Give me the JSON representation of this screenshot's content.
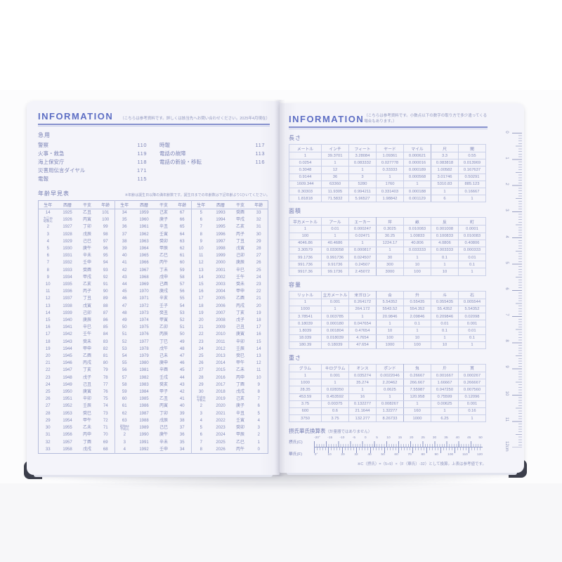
{
  "left_page": {
    "header": {
      "title": "INFORMATION",
      "note": "（こちらは参考資料です。詳しくは該当先へお問い合わせください。2025年4月現在）"
    },
    "emergency": {
      "title": "急用",
      "items_left": [
        {
          "label": "警察",
          "value": "110"
        },
        {
          "label": "火事・救急",
          "value": "119"
        },
        {
          "label": "海上保安庁",
          "value": "118"
        },
        {
          "label": "災害用伝言ダイヤル",
          "value": "171"
        },
        {
          "label": "電報",
          "value": "115"
        }
      ],
      "items_right": [
        {
          "label": "時報",
          "value": "117"
        },
        {
          "label": "電話の故障",
          "value": "113"
        },
        {
          "label": "電話の新設・移転",
          "value": "116"
        }
      ]
    },
    "age_chart": {
      "title": "年齢早見表",
      "note": "※年齢は誕生日以降の満年齢数です。誕生日までの年齢数は下記年齢より1ひいてください。",
      "table": {
        "headers": [
          "生年",
          "西暦",
          "干支",
          "年齢",
          "生年",
          "西暦",
          "干支",
          "年齢",
          "生年",
          "西暦",
          "干支",
          "年齢"
        ],
        "rows": [
          [
            "14",
            "1925",
            "乙丑",
            "101",
            "34",
            "1959",
            "己亥",
            "67",
            "5",
            "1993",
            "癸酉",
            "33"
          ],
          [
            "大正15\n昭和元",
            "1926",
            "丙寅",
            "100",
            "35",
            "1960",
            "庚子",
            "66",
            "6",
            "1994",
            "甲戌",
            "32"
          ],
          [
            "2",
            "1927",
            "丁卯",
            "99",
            "36",
            "1961",
            "辛丑",
            "65",
            "7",
            "1995",
            "乙亥",
            "31"
          ],
          [
            "3",
            "1928",
            "戊辰",
            "98",
            "37",
            "1962",
            "壬寅",
            "64",
            "8",
            "1996",
            "丙子",
            "30"
          ],
          [
            "4",
            "1929",
            "己巳",
            "97",
            "38",
            "1963",
            "癸卯",
            "63",
            "9",
            "1997",
            "丁丑",
            "29"
          ],
          [
            "5",
            "1930",
            "庚午",
            "96",
            "39",
            "1964",
            "甲辰",
            "62",
            "10",
            "1998",
            "戊寅",
            "28"
          ],
          [
            "6",
            "1931",
            "辛未",
            "95",
            "40",
            "1965",
            "乙巳",
            "61",
            "11",
            "1999",
            "己卯",
            "27"
          ],
          [
            "7",
            "1932",
            "壬申",
            "94",
            "41",
            "1966",
            "丙午",
            "60",
            "12",
            "2000",
            "庚辰",
            "26"
          ],
          [
            "8",
            "1933",
            "癸酉",
            "93",
            "42",
            "1967",
            "丁未",
            "59",
            "13",
            "2001",
            "辛巳",
            "25"
          ],
          [
            "9",
            "1934",
            "甲戌",
            "92",
            "43",
            "1968",
            "戊申",
            "58",
            "14",
            "2002",
            "壬午",
            "24"
          ],
          [
            "10",
            "1935",
            "乙亥",
            "91",
            "44",
            "1969",
            "己酉",
            "57",
            "15",
            "2003",
            "癸未",
            "23"
          ],
          [
            "11",
            "1936",
            "丙子",
            "90",
            "45",
            "1970",
            "庚戌",
            "56",
            "16",
            "2004",
            "甲申",
            "22"
          ],
          [
            "12",
            "1937",
            "丁丑",
            "89",
            "46",
            "1971",
            "辛亥",
            "55",
            "17",
            "2005",
            "乙酉",
            "21"
          ],
          [
            "13",
            "1938",
            "戊寅",
            "88",
            "47",
            "1972",
            "壬子",
            "54",
            "18",
            "2006",
            "丙戌",
            "20"
          ],
          [
            "14",
            "1939",
            "己卯",
            "87",
            "48",
            "1973",
            "癸丑",
            "53",
            "19",
            "2007",
            "丁亥",
            "19"
          ],
          [
            "15",
            "1940",
            "庚辰",
            "86",
            "49",
            "1974",
            "甲寅",
            "52",
            "20",
            "2008",
            "戊子",
            "18"
          ],
          [
            "16",
            "1941",
            "辛巳",
            "85",
            "50",
            "1975",
            "乙卯",
            "51",
            "21",
            "2009",
            "己丑",
            "17"
          ],
          [
            "17",
            "1942",
            "壬午",
            "84",
            "51",
            "1976",
            "丙辰",
            "50",
            "22",
            "2010",
            "庚寅",
            "16"
          ],
          [
            "18",
            "1943",
            "癸未",
            "83",
            "52",
            "1977",
            "丁巳",
            "49",
            "23",
            "2011",
            "辛卯",
            "15"
          ],
          [
            "19",
            "1944",
            "甲申",
            "82",
            "53",
            "1978",
            "戊午",
            "48",
            "24",
            "2012",
            "壬辰",
            "14"
          ],
          [
            "20",
            "1945",
            "乙酉",
            "81",
            "54",
            "1979",
            "己未",
            "47",
            "25",
            "2013",
            "癸巳",
            "13"
          ],
          [
            "21",
            "1946",
            "丙戌",
            "80",
            "55",
            "1980",
            "庚申",
            "46",
            "26",
            "2014",
            "甲午",
            "12"
          ],
          [
            "22",
            "1947",
            "丁亥",
            "79",
            "56",
            "1981",
            "辛酉",
            "45",
            "27",
            "2015",
            "乙未",
            "11"
          ],
          [
            "23",
            "1948",
            "戊子",
            "78",
            "57",
            "1982",
            "壬戌",
            "44",
            "28",
            "2016",
            "丙申",
            "10"
          ],
          [
            "24",
            "1949",
            "己丑",
            "77",
            "58",
            "1983",
            "癸亥",
            "43",
            "29",
            "2017",
            "丁酉",
            "9"
          ],
          [
            "25",
            "1950",
            "庚寅",
            "76",
            "59",
            "1984",
            "甲子",
            "42",
            "30",
            "2018",
            "戊戌",
            "8"
          ],
          [
            "26",
            "1951",
            "辛卯",
            "75",
            "60",
            "1985",
            "乙丑",
            "41",
            "平成31\n令和元",
            "2019",
            "己亥",
            "7"
          ],
          [
            "27",
            "1952",
            "壬辰",
            "74",
            "61",
            "1986",
            "丙寅",
            "40",
            "2",
            "2020",
            "庚子",
            "6"
          ],
          [
            "28",
            "1953",
            "癸巳",
            "73",
            "62",
            "1987",
            "丁卯",
            "39",
            "3",
            "2021",
            "辛丑",
            "5"
          ],
          [
            "29",
            "1954",
            "甲午",
            "72",
            "63",
            "1988",
            "戊辰",
            "38",
            "4",
            "2022",
            "壬寅",
            "4"
          ],
          [
            "30",
            "1955",
            "乙未",
            "71",
            "昭和64\n平成元",
            "1989",
            "己巳",
            "37",
            "5",
            "2023",
            "癸卯",
            "3"
          ],
          [
            "31",
            "1956",
            "丙申",
            "70",
            "2",
            "1990",
            "庚午",
            "36",
            "6",
            "2024",
            "甲辰",
            "2"
          ],
          [
            "32",
            "1957",
            "丁酉",
            "69",
            "3",
            "1991",
            "辛未",
            "35",
            "7",
            "2025",
            "乙巳",
            "1"
          ],
          [
            "33",
            "1958",
            "戊戌",
            "68",
            "4",
            "1992",
            "壬申",
            "34",
            "8",
            "2026",
            "丙午",
            "0"
          ]
        ]
      }
    }
  },
  "right_page": {
    "header": {
      "title": "INFORMATION",
      "note": "（こちらは参考資料です。小数点以下の数字の取り方で多少違ってくる場合もあります。）"
    },
    "length": {
      "title": "長さ",
      "table": {
        "headers": [
          "メートル",
          "インチ",
          "フィート",
          "ヤード",
          "マイル",
          "尺",
          "間"
        ],
        "rows": [
          [
            "1",
            "39.3701",
            "3.28084",
            "1.09361",
            "0.000621",
            "3.3",
            "0.55"
          ],
          [
            "0.0254",
            "1",
            "0.083332",
            "0.027778",
            "0.000016",
            "0.083818",
            "0.013969"
          ],
          [
            "0.3048",
            "12",
            "1",
            "0.33333",
            "0.000189",
            "1.00582",
            "0.167637"
          ],
          [
            "0.9144",
            "36",
            "3",
            "1",
            "0.000568",
            "3.01746",
            "0.50291"
          ],
          [
            "1609.344",
            "63360",
            "5280",
            "1760",
            "1",
            "5310.83",
            "885.123"
          ],
          [
            "0.30303",
            "11.9305",
            "0.994211",
            "0.331403",
            "0.000188",
            "1",
            "0.16667"
          ],
          [
            "1.81818",
            "71.5832",
            "5.96527",
            "1.98842",
            "0.001129",
            "6",
            "1"
          ]
        ]
      }
    },
    "area": {
      "title": "面積",
      "table": {
        "headers": [
          "平方メートル",
          "アール",
          "エーカー",
          "坪",
          "畝",
          "反",
          "町"
        ],
        "rows": [
          [
            "1",
            "0.01",
            "0.000247",
            "0.3025",
            "0.010083",
            "0.001008",
            "0.0001"
          ],
          [
            "100",
            "1",
            "0.02471",
            "30.25",
            "1.00833",
            "0.100833",
            "0.010083"
          ],
          [
            "4046.86",
            "40.4686",
            "1",
            "1224.17",
            "40.806",
            "4.0806",
            "0.40806"
          ],
          [
            "3.30579",
            "0.033058",
            "0.000817",
            "1",
            "0.033333",
            "0.003333",
            "0.000333"
          ],
          [
            "99.1736",
            "0.991736",
            "0.024507",
            "30",
            "1",
            "0.1",
            "0.01"
          ],
          [
            "991.736",
            "9.91736",
            "0.24507",
            "300",
            "10",
            "1",
            "0.1"
          ],
          [
            "9917.36",
            "99.1736",
            "2.45072",
            "3000",
            "100",
            "10",
            "1"
          ]
        ]
      }
    },
    "volume": {
      "title": "容量",
      "table": {
        "headers": [
          "リットル",
          "立方メートル",
          "米ガロン",
          "合",
          "升",
          "斗",
          "石"
        ],
        "rows": [
          [
            "1",
            "0.001",
            "0.264172",
            "5.54352",
            "0.55435",
            "0.055435",
            "0.005544"
          ],
          [
            "1000",
            "1",
            "264.172",
            "5543.52",
            "554.352",
            "55.4352",
            "5.54352"
          ],
          [
            "3.78541",
            "0.003785",
            "1",
            "20.9846",
            "2.09846",
            "0.209846",
            "0.02098"
          ],
          [
            "0.18039",
            "0.000180",
            "0.047654",
            "1",
            "0.1",
            "0.01",
            "0.001"
          ],
          [
            "1.8039",
            "0.001804",
            "0.47654",
            "10",
            "1",
            "0.1",
            "0.01"
          ],
          [
            "18.039",
            "0.018039",
            "4.7654",
            "100",
            "10",
            "1",
            "0.1"
          ],
          [
            "180.39",
            "0.18039",
            "47.654",
            "1000",
            "100",
            "10",
            "1"
          ]
        ]
      }
    },
    "weight": {
      "title": "重さ",
      "table": {
        "headers": [
          "グラム",
          "キログラム",
          "オンス",
          "ポンド",
          "匁",
          "斤",
          "貫"
        ],
        "rows": [
          [
            "1",
            "0.001",
            "0.035274",
            "0.0022046",
            "0.26667",
            "0.001667",
            "0.000267"
          ],
          [
            "1000",
            "1",
            "35.274",
            "2.20462",
            "266.667",
            "1.66667",
            "0.266667"
          ],
          [
            "28.35",
            "0.028350",
            "1",
            "0.0625",
            "7.55987",
            "0.047250",
            "0.007560"
          ],
          [
            "453.59",
            "0.453592",
            "16",
            "1",
            "120.958",
            "0.75599",
            "0.12096"
          ],
          [
            "3.75",
            "0.00375",
            "0.132277",
            "0.008267",
            "1",
            "0.00625",
            "0.001"
          ],
          [
            "600",
            "0.6",
            "21.1644",
            "1.32277",
            "160",
            "1",
            "0.16"
          ],
          [
            "3750",
            "3.75",
            "132.277",
            "8.26733",
            "1000",
            "6.25",
            "1"
          ]
        ]
      }
    },
    "temperature": {
      "title": "摂氏華氏換算表",
      "subtitle": "（計量器ではありません）",
      "celsius_label": "摂氏(C)",
      "fahrenheit_label": "華氏(F)",
      "celsius_ticks": [
        "-20°",
        "-15",
        "-10",
        "-5",
        "0",
        "5",
        "10",
        "15",
        "20",
        "25",
        "30",
        "35",
        "40",
        "45",
        "50"
      ],
      "fahrenheit_ticks": [
        "0°",
        "10",
        "20",
        "32",
        "40",
        "50",
        "60",
        "70",
        "80",
        "90",
        "100",
        "110",
        "120"
      ],
      "note": "※C（摂氏）=（5÷9）×（F（華氏）-32）として換算。上表は参考値です。"
    },
    "ruler": {
      "unit": "cm",
      "numbers": [
        "0",
        "1",
        "2",
        "3",
        "4",
        "5",
        "6",
        "7",
        "8",
        "9",
        "10",
        "11",
        "12cm"
      ]
    }
  },
  "colors": {
    "accent_blue": "#5d6ec4",
    "text_blue": "#7e86b6",
    "table_border": "#c4cae6",
    "page": "#f3f3f9",
    "cover": "#3c3f4b"
  }
}
